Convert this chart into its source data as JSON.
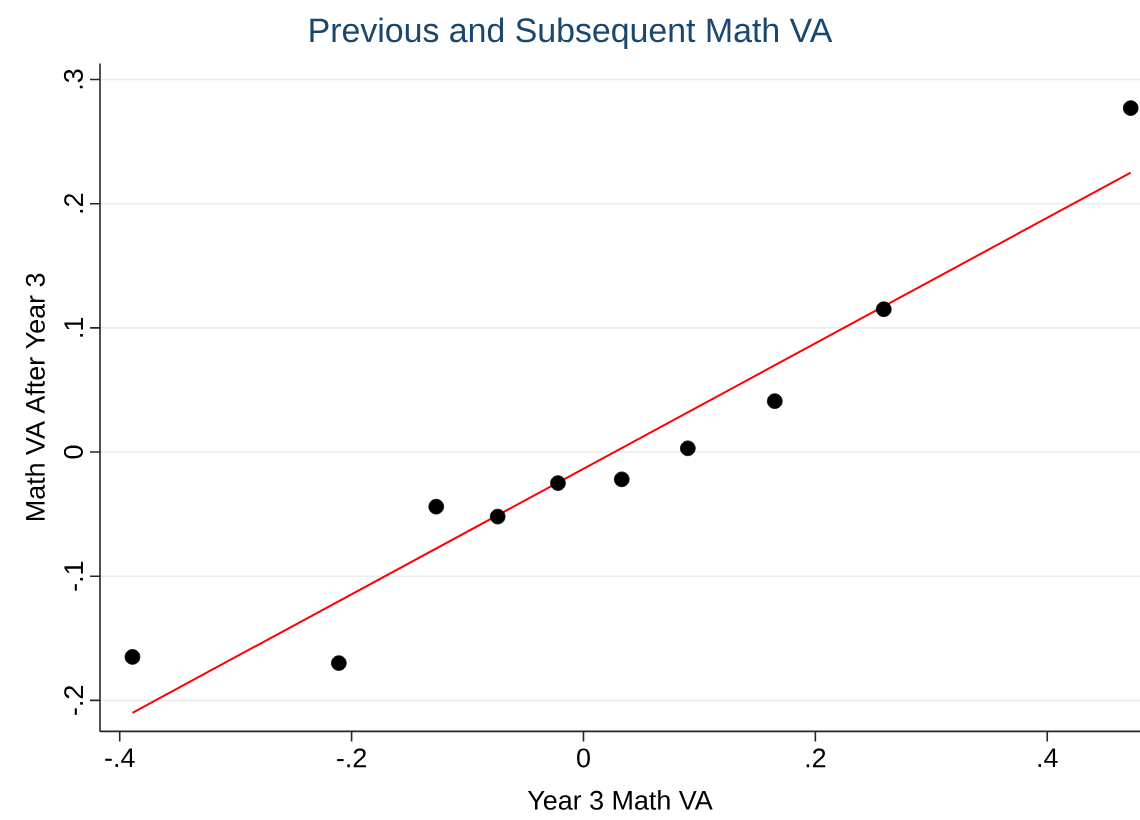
{
  "chart_data": {
    "type": "scatter",
    "title": "Previous and Subsequent Math VA",
    "xlabel": "Year 3 Math VA",
    "ylabel": "Math VA After Year 3",
    "series": [
      {
        "color": "#000000",
        "marker": "circle",
        "x": [
          -0.389,
          -0.211,
          -0.127,
          -0.074,
          -0.022,
          0.033,
          0.09,
          0.165,
          0.259,
          0.472
        ],
        "values": [
          -0.165,
          -0.17,
          -0.044,
          -0.052,
          -0.025,
          -0.022,
          0.003,
          0.041,
          0.115,
          0.277
        ]
      },
      {
        "type": "line",
        "color": "#ff0000",
        "marker": "none",
        "line_style": "solid",
        "x": [
          -0.389,
          0.472
        ],
        "values": [
          -0.21,
          0.225
        ]
      }
    ],
    "xlim": [
      -0.417,
      0.48
    ],
    "ylim": [
      -0.225,
      0.313
    ],
    "xticks": [
      {
        "value": -0.4,
        "label": "-.4"
      },
      {
        "value": -0.2,
        "label": "-.2"
      },
      0,
      {
        "value": 0.2,
        "label": ".2"
      },
      {
        "value": 0.4,
        "label": ".4"
      }
    ],
    "yticks": [
      {
        "value": -0.2,
        "label": "-.2"
      },
      {
        "value": -0.1,
        "label": "-.1"
      },
      0,
      {
        "value": 0.1,
        "label": ".1"
      },
      {
        "value": 0.2,
        "label": ".2"
      },
      {
        "value": 0.3,
        "label": ".3"
      }
    ],
    "grid": "y",
    "legend": false
  }
}
